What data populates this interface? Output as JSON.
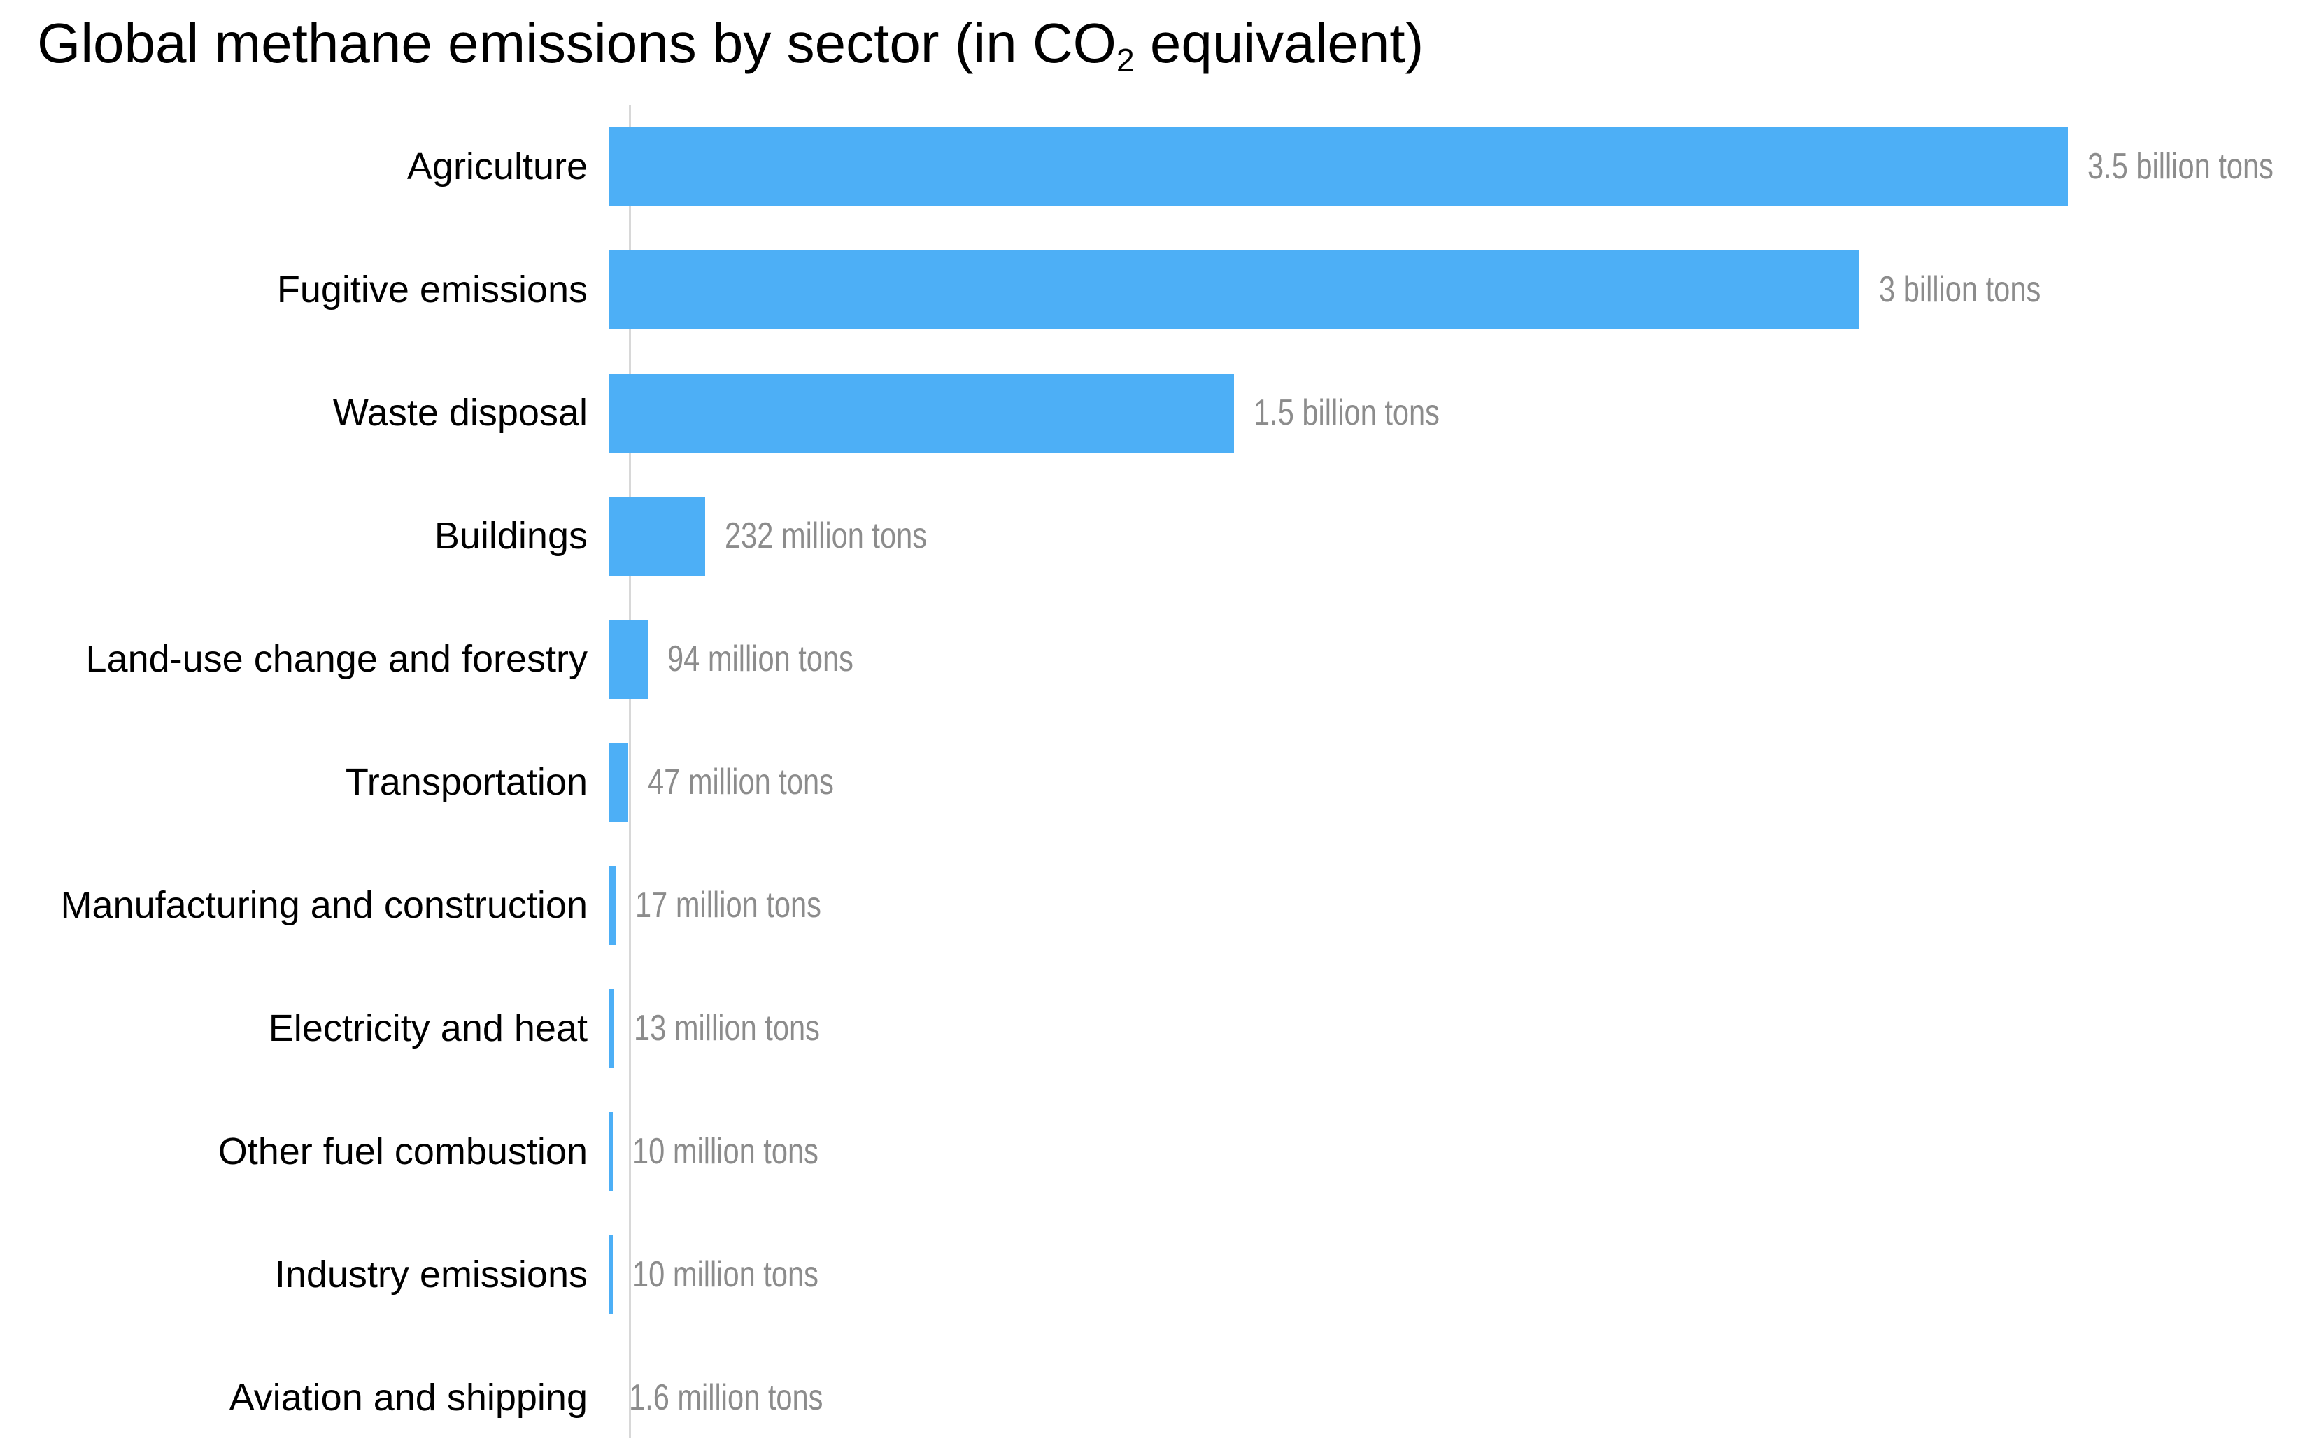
{
  "title": {
    "prefix": "Global methane emissions by sector (in CO",
    "subscript": "2",
    "suffix": " equivalent)"
  },
  "colors": {
    "bar": "#4DAFF6",
    "value_label": "#8C8C8C",
    "axis_line": "#D8D8D8",
    "title_text": "#000000",
    "background": "#FFFFFF"
  },
  "chart_data": {
    "type": "bar",
    "orientation": "horizontal",
    "title": "Global methane emissions by sector (in CO2 equivalent)",
    "unit": "tons of CO2 equivalent",
    "grid": false,
    "legend": false,
    "xlim_million_tons": [
      0,
      3500
    ],
    "categories": [
      "Agriculture",
      "Fugitive emissions",
      "Waste disposal",
      "Buildings",
      "Land-use change and forestry",
      "Transportation",
      "Manufacturing and construction",
      "Electricity and heat",
      "Other fuel combustion",
      "Industry emissions",
      "Aviation and shipping"
    ],
    "values_million_tons": [
      3500,
      3000,
      1500,
      232,
      94,
      47,
      17,
      13,
      10,
      10,
      1.6
    ],
    "value_labels": [
      "3.5 billion tons",
      "3 billion tons",
      "1.5 billion tons",
      "232 million tons",
      "94 million tons",
      "47 million tons",
      "17 million tons",
      "13 million tons",
      "10 million tons",
      "10 million tons",
      "1.6 million tons"
    ]
  }
}
